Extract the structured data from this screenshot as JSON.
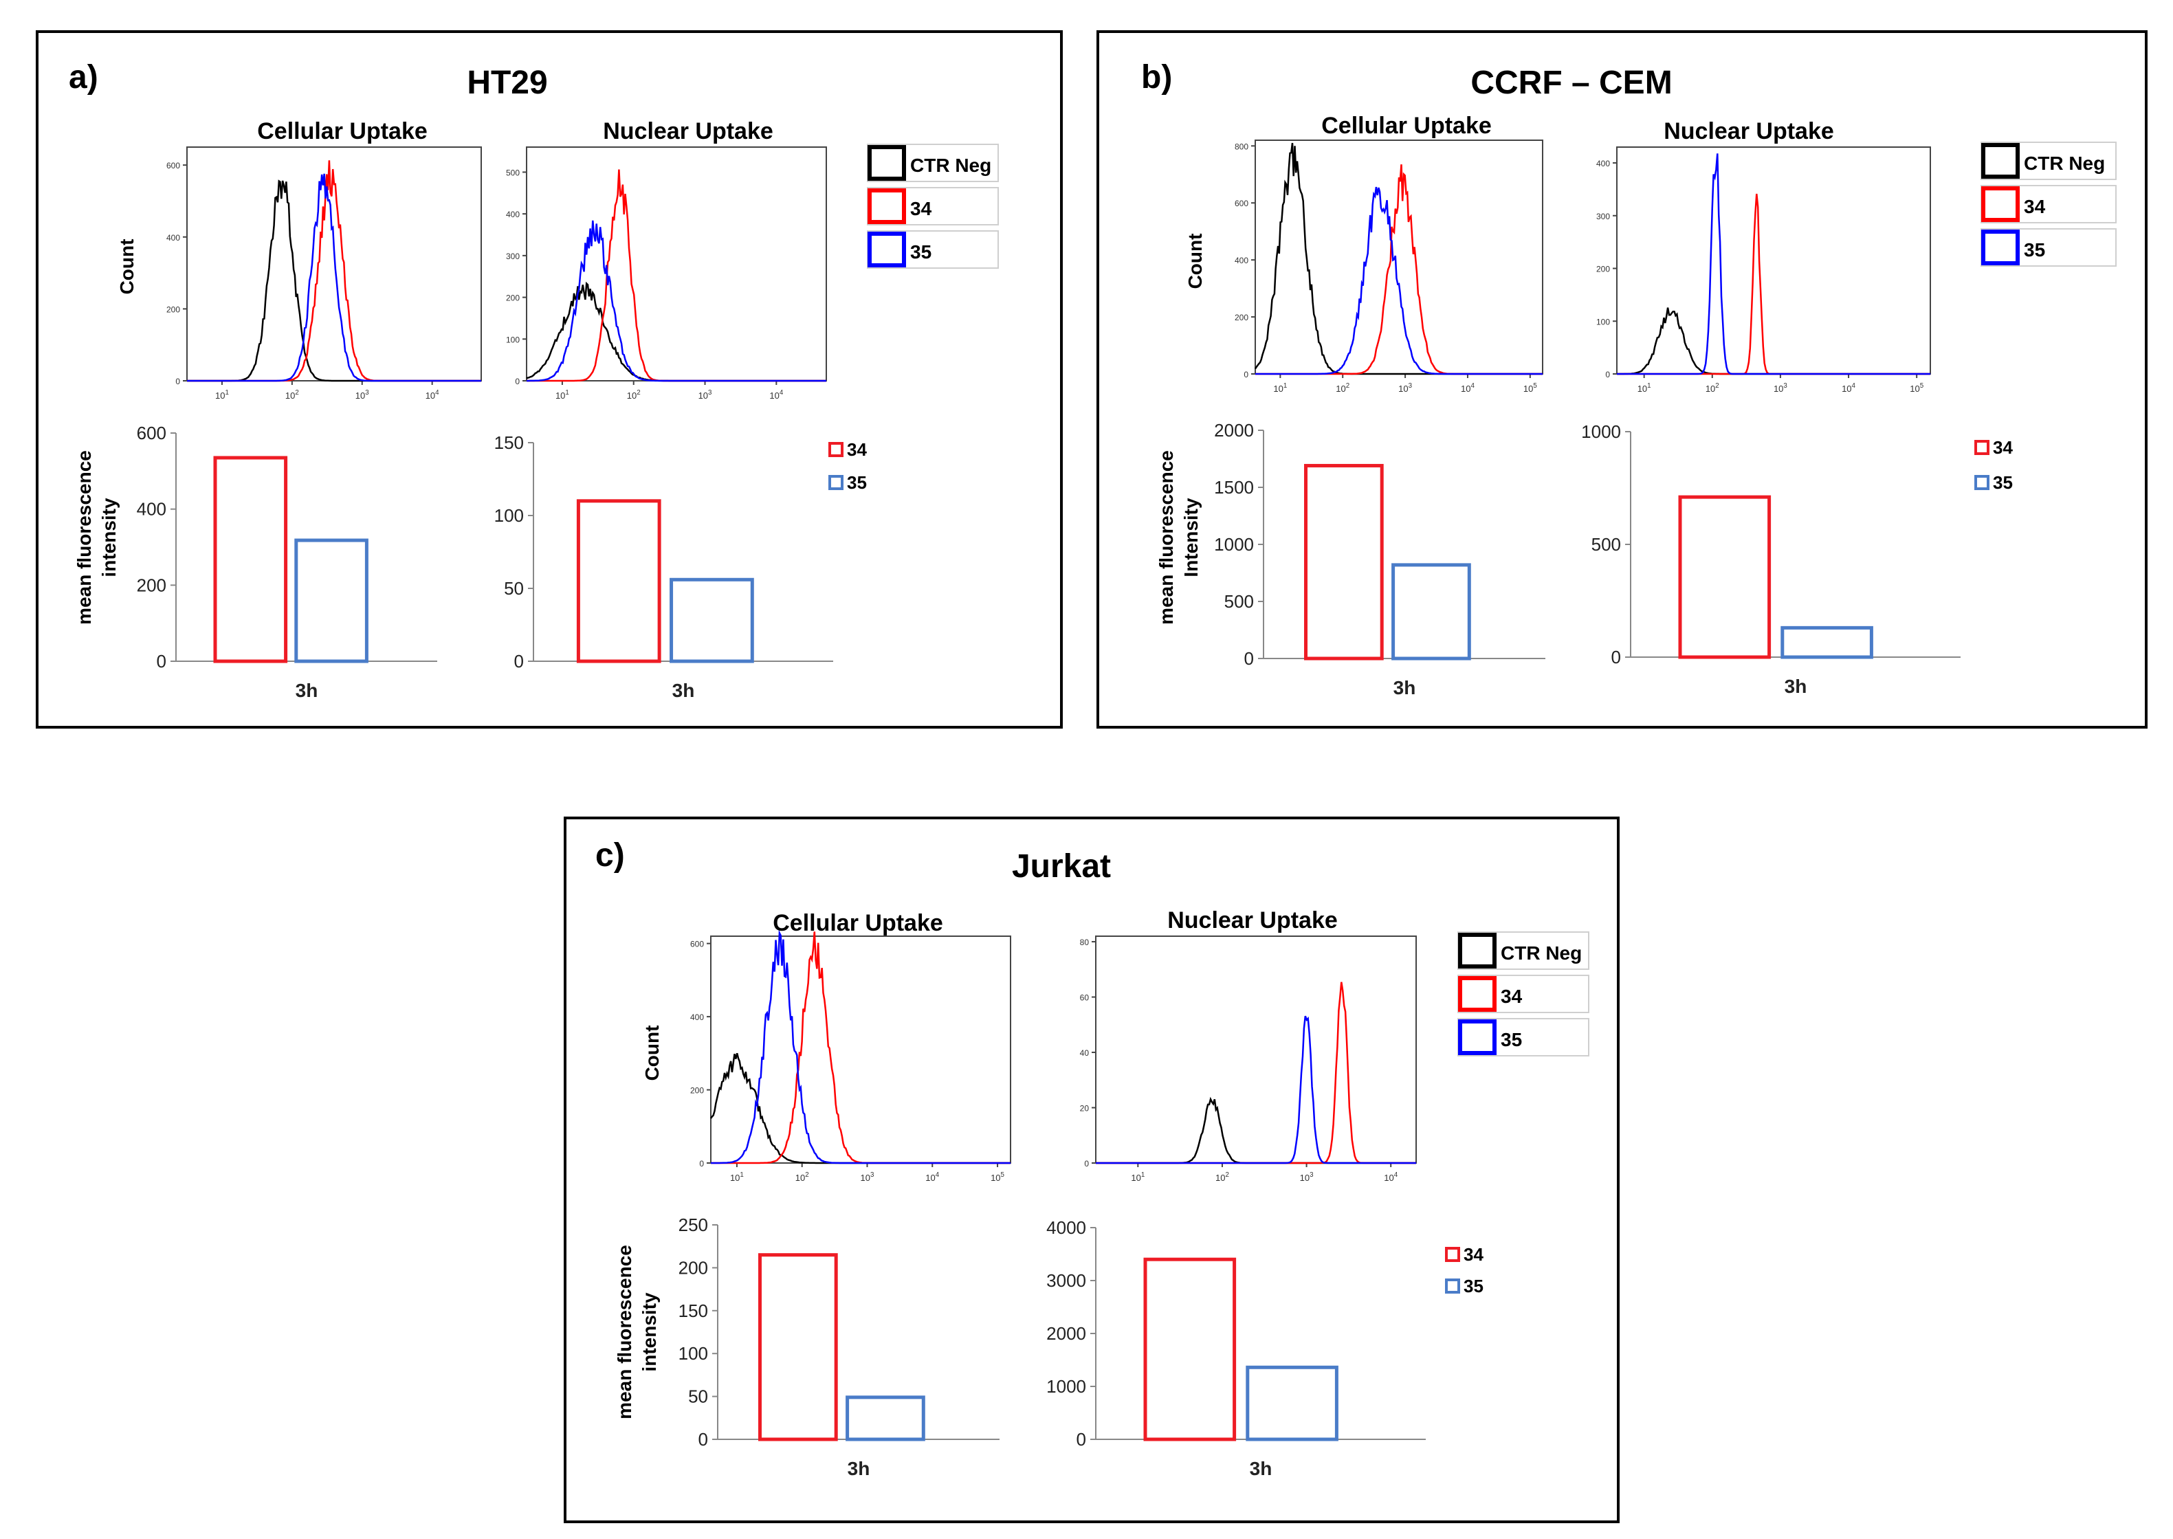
{
  "figure": {
    "panels": [
      {
        "letter": "a)",
        "title": "HT29",
        "legend": {
          "histogram": [
            {
              "label": "CTR Neg",
              "color": "#000000"
            },
            {
              "label": "34",
              "color": "#ff0000"
            },
            {
              "label": "35",
              "color": "#0000ff"
            }
          ],
          "bar": [
            {
              "label": "34",
              "color": "#ee1c25"
            },
            {
              "label": "35",
              "color": "#4a7cc8"
            }
          ]
        },
        "bar_ylabel": [
          "mean fluorescence",
          "intensity"
        ]
      },
      {
        "letter": "b)",
        "title": "CCRF – CEM",
        "legend": {
          "histogram": [
            {
              "label": "CTR Neg",
              "color": "#000000"
            },
            {
              "label": "34",
              "color": "#ff0000"
            },
            {
              "label": "35",
              "color": "#0000ff"
            }
          ],
          "bar": [
            {
              "label": "34",
              "color": "#ee1c25"
            },
            {
              "label": "35",
              "color": "#4a7cc8"
            }
          ]
        },
        "bar_ylabel": [
          "mean fluorescence",
          "Intensity"
        ]
      },
      {
        "letter": "c)",
        "title": "Jurkat",
        "legend": {
          "histogram": [
            {
              "label": "CTR Neg",
              "color": "#000000"
            },
            {
              "label": "34",
              "color": "#ff0000"
            },
            {
              "label": "35",
              "color": "#0000ff"
            }
          ],
          "bar": [
            {
              "label": "34",
              "color": "#ee1c25"
            },
            {
              "label": "35",
              "color": "#4a7cc8"
            }
          ]
        },
        "bar_ylabel": [
          "mean fluorescence",
          "intensity"
        ]
      }
    ]
  },
  "chart_data": [
    {
      "panel": "a",
      "cell_line": "HT29",
      "type": "histogram",
      "title": "Cellular Uptake",
      "ylabel": "Count",
      "xscale": "log",
      "x_ticks": [
        "10^1",
        "10^2",
        "10^3",
        "10^4"
      ],
      "xlim_decades": [
        0.5,
        4.7
      ],
      "y_ticks": [
        0,
        200,
        400,
        600
      ],
      "ylim": [
        0,
        650
      ],
      "series": [
        {
          "name": "CTR Neg",
          "color": "#000000",
          "peak_log10": 1.85,
          "peak_count": 545,
          "width": 0.17
        },
        {
          "name": "34",
          "color": "#ff0000",
          "peak_log10": 2.55,
          "peak_count": 570,
          "width": 0.17
        },
        {
          "name": "35",
          "color": "#0000ff",
          "peak_log10": 2.45,
          "peak_count": 568,
          "width": 0.16
        }
      ]
    },
    {
      "panel": "a",
      "cell_line": "HT29",
      "type": "histogram",
      "title": "Nuclear Uptake",
      "xscale": "log",
      "x_ticks": [
        "10^1",
        "10^2",
        "10^3",
        "10^4"
      ],
      "xlim_decades": [
        0.5,
        4.7
      ],
      "y_ticks": [
        0,
        100,
        200,
        300,
        400,
        500
      ],
      "ylim": [
        0,
        560
      ],
      "series": [
        {
          "name": "CTR Neg",
          "color": "#000000",
          "peak_log10": 1.3,
          "peak_count": 215,
          "width": 0.3
        },
        {
          "name": "34",
          "color": "#ff0000",
          "peak_log10": 1.8,
          "peak_count": 480,
          "width": 0.15
        },
        {
          "name": "35",
          "color": "#0000ff",
          "peak_log10": 1.45,
          "peak_count": 360,
          "width": 0.22
        }
      ]
    },
    {
      "panel": "a",
      "cell_line": "HT29",
      "type": "bar",
      "title": "Cellular Uptake",
      "ylabel": "mean fluorescence intensity",
      "categories": [
        "3h"
      ],
      "ylim": [
        0,
        600
      ],
      "y_ticks": [
        0,
        200,
        400,
        600
      ],
      "series": [
        {
          "name": "34",
          "values": [
            535
          ]
        },
        {
          "name": "35",
          "values": [
            318
          ]
        }
      ]
    },
    {
      "panel": "a",
      "cell_line": "HT29",
      "type": "bar",
      "title": "Nuclear Uptake",
      "categories": [
        "3h"
      ],
      "ylim": [
        0,
        150
      ],
      "y_ticks": [
        0,
        50,
        100,
        150
      ],
      "series": [
        {
          "name": "34",
          "values": [
            110
          ]
        },
        {
          "name": "35",
          "values": [
            56
          ]
        }
      ]
    },
    {
      "panel": "b",
      "cell_line": "CCRF – CEM",
      "type": "histogram",
      "title": "Cellular Uptake",
      "ylabel": "Count",
      "xscale": "log",
      "x_ticks": [
        "10^1",
        "10^2",
        "10^3",
        "10^4",
        "10^5"
      ],
      "xlim_decades": [
        0.6,
        5.2
      ],
      "y_ticks": [
        0,
        200,
        400,
        600,
        800
      ],
      "ylim": [
        0,
        820
      ],
      "series": [
        {
          "name": "CTR Neg",
          "color": "#000000",
          "peak_log10": 1.2,
          "peak_count": 740,
          "width": 0.22
        },
        {
          "name": "34",
          "color": "#ff0000",
          "peak_log10": 2.95,
          "peak_count": 670,
          "width": 0.2
        },
        {
          "name": "35",
          "color": "#0000ff",
          "peak_log10": 2.6,
          "peak_count": 635,
          "width": 0.24
        }
      ]
    },
    {
      "panel": "b",
      "cell_line": "CCRF – CEM",
      "type": "histogram",
      "title": "Nuclear Uptake",
      "xscale": "log",
      "x_ticks": [
        "10^1",
        "10^2",
        "10^3",
        "10^4",
        "10^5"
      ],
      "xlim_decades": [
        0.6,
        5.2
      ],
      "y_ticks": [
        0,
        100,
        200,
        300,
        400
      ],
      "ylim": [
        0,
        430
      ],
      "series": [
        {
          "name": "CTR Neg",
          "color": "#000000",
          "peak_log10": 1.4,
          "peak_count": 120,
          "width": 0.18
        },
        {
          "name": "34",
          "color": "#ff0000",
          "peak_log10": 2.65,
          "peak_count": 320,
          "width": 0.05
        },
        {
          "name": "35",
          "color": "#0000ff",
          "peak_log10": 2.05,
          "peak_count": 420,
          "width": 0.06
        }
      ]
    },
    {
      "panel": "b",
      "cell_line": "CCRF – CEM",
      "type": "bar",
      "title": "Cellular Uptake",
      "ylabel": "mean fluorescence Intensity",
      "categories": [
        "3h"
      ],
      "ylim": [
        0,
        2000
      ],
      "y_ticks": [
        0,
        500,
        1000,
        1500,
        2000
      ],
      "series": [
        {
          "name": "34",
          "values": [
            1690
          ]
        },
        {
          "name": "35",
          "values": [
            820
          ]
        }
      ]
    },
    {
      "panel": "b",
      "cell_line": "CCRF – CEM",
      "type": "bar",
      "title": "Nuclear Uptake",
      "categories": [
        "3h"
      ],
      "ylim": [
        0,
        1000
      ],
      "y_ticks": [
        0,
        500,
        1000
      ],
      "series": [
        {
          "name": "34",
          "values": [
            710
          ]
        },
        {
          "name": "35",
          "values": [
            130
          ]
        }
      ]
    },
    {
      "panel": "c",
      "cell_line": "Jurkat",
      "type": "histogram",
      "title": "Cellular Uptake",
      "ylabel": "Count",
      "xscale": "log",
      "x_ticks": [
        "10^1",
        "10^2",
        "10^3",
        "10^4",
        "10^5"
      ],
      "xlim_decades": [
        0.6,
        5.2
      ],
      "y_ticks": [
        0,
        200,
        400,
        600
      ],
      "ylim": [
        0,
        620
      ],
      "series": [
        {
          "name": "CTR Neg",
          "color": "#000000",
          "peak_log10": 1.0,
          "peak_count": 280,
          "width": 0.3
        },
        {
          "name": "34",
          "color": "#ff0000",
          "peak_log10": 2.2,
          "peak_count": 585,
          "width": 0.2
        },
        {
          "name": "35",
          "color": "#0000ff",
          "peak_log10": 1.65,
          "peak_count": 580,
          "width": 0.22
        }
      ]
    },
    {
      "panel": "c",
      "cell_line": "Jurkat",
      "type": "histogram",
      "title": "Nuclear Uptake",
      "xscale": "log",
      "x_ticks": [
        "10^1",
        "10^2",
        "10^3",
        "10^4"
      ],
      "xlim_decades": [
        0.5,
        4.3
      ],
      "y_ticks": [
        0,
        20,
        40,
        60,
        80
      ],
      "ylim": [
        0,
        82
      ],
      "series": [
        {
          "name": "CTR Neg",
          "color": "#000000",
          "peak_log10": 1.88,
          "peak_count": 22,
          "width": 0.1
        },
        {
          "name": "34",
          "color": "#ff0000",
          "peak_log10": 3.42,
          "peak_count": 64,
          "width": 0.06
        },
        {
          "name": "35",
          "color": "#0000ff",
          "peak_log10": 3.0,
          "peak_count": 54,
          "width": 0.06
        }
      ]
    },
    {
      "panel": "c",
      "cell_line": "Jurkat",
      "type": "bar",
      "title": "Cellular Uptake",
      "ylabel": "mean fluorescence intensity",
      "categories": [
        "3h"
      ],
      "ylim": [
        0,
        250
      ],
      "y_ticks": [
        0,
        50,
        100,
        150,
        200,
        250
      ],
      "series": [
        {
          "name": "34",
          "values": [
            215
          ]
        },
        {
          "name": "35",
          "values": [
            49
          ]
        }
      ]
    },
    {
      "panel": "c",
      "cell_line": "Jurkat",
      "type": "bar",
      "title": "Nuclear Uptake",
      "categories": [
        "3h"
      ],
      "ylim": [
        0,
        4000
      ],
      "y_ticks": [
        0,
        1000,
        2000,
        3000,
        4000
      ],
      "series": [
        {
          "name": "34",
          "values": [
            3400
          ]
        },
        {
          "name": "35",
          "values": [
            1360
          ]
        }
      ]
    }
  ]
}
